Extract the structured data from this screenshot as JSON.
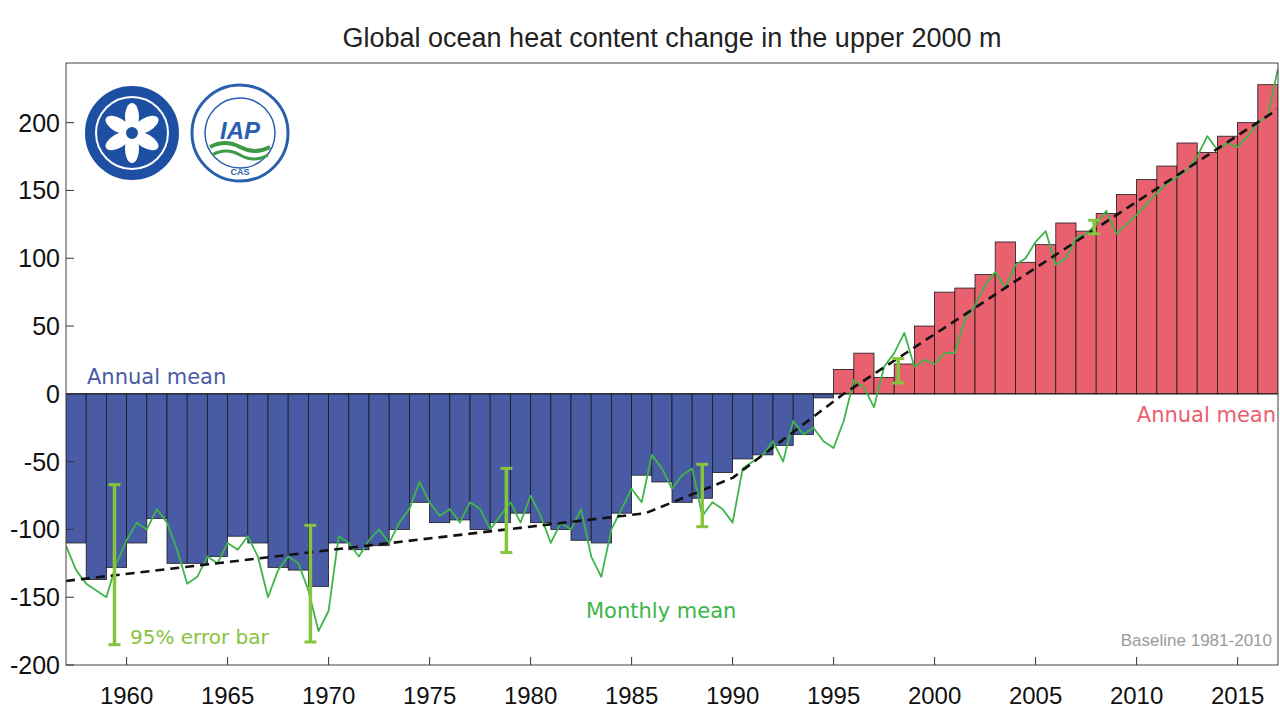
{
  "chart_data": {
    "type": "bar",
    "title": "Global ocean heat content change in the upper 2000 m",
    "x": [
      1957,
      1958,
      1959,
      1960,
      1961,
      1962,
      1963,
      1964,
      1965,
      1966,
      1967,
      1968,
      1969,
      1970,
      1971,
      1972,
      1973,
      1974,
      1975,
      1976,
      1977,
      1978,
      1979,
      1980,
      1981,
      1982,
      1983,
      1984,
      1985,
      1986,
      1987,
      1988,
      1989,
      1990,
      1991,
      1992,
      1993,
      1994,
      1995,
      1996,
      1997,
      1998,
      1999,
      2000,
      2001,
      2002,
      2003,
      2004,
      2005,
      2006,
      2007,
      2008,
      2009,
      2010,
      2011,
      2012,
      2013,
      2014,
      2015,
      2016
    ],
    "series": [
      {
        "name": "Annual mean",
        "type": "bar",
        "colors": [
          "#4a5ba6",
          "#4a5ba6",
          "#4a5ba6",
          "#4a5ba6",
          "#4a5ba6",
          "#4a5ba6",
          "#4a5ba6",
          "#4a5ba6",
          "#4a5ba6",
          "#4a5ba6",
          "#4a5ba6",
          "#4a5ba6",
          "#4a5ba6",
          "#4a5ba6",
          "#4a5ba6",
          "#4a5ba6",
          "#4a5ba6",
          "#4a5ba6",
          "#4a5ba6",
          "#4a5ba6",
          "#4a5ba6",
          "#4a5ba6",
          "#4a5ba6",
          "#4a5ba6",
          "#4a5ba6",
          "#4a5ba6",
          "#4a5ba6",
          "#4a5ba6",
          "#4a5ba6",
          "#4a5ba6",
          "#4a5ba6",
          "#4a5ba6",
          "#4a5ba6",
          "#4a5ba6",
          "#4a5ba6",
          "#4a5ba6",
          "#4a5ba6",
          "#4a5ba6",
          "#e9606e",
          "#e9606e",
          "#e9606e",
          "#e9606e",
          "#e9606e",
          "#e9606e",
          "#e9606e",
          "#e9606e",
          "#e9606e",
          "#e9606e",
          "#e9606e",
          "#e9606e",
          "#e9606e",
          "#e9606e",
          "#e9606e",
          "#e9606e",
          "#e9606e",
          "#e9606e",
          "#e9606e",
          "#e9606e",
          "#e9606e",
          "#e9606e"
        ],
        "values": [
          -110,
          -137,
          -128,
          -110,
          -92,
          -125,
          -125,
          -120,
          -105,
          -110,
          -128,
          -130,
          -142,
          -110,
          -115,
          -112,
          -100,
          -80,
          -95,
          -93,
          -100,
          -95,
          -88,
          -95,
          -100,
          -108,
          -110,
          -88,
          -60,
          -65,
          -80,
          -77,
          -58,
          -48,
          -45,
          -38,
          -30,
          -3,
          18,
          30,
          12,
          22,
          50,
          75,
          78,
          88,
          112,
          97,
          110,
          126,
          120,
          133,
          147,
          158,
          168,
          185,
          178,
          190,
          200,
          228
        ]
      },
      {
        "name": "Monthly mean",
        "type": "line",
        "color": "#3db54a",
        "x": [
          1957,
          1957.5,
          1958,
          1958.5,
          1959,
          1959.5,
          1960,
          1960.5,
          1961,
          1961.5,
          1962,
          1962.5,
          1963,
          1963.5,
          1964,
          1964.5,
          1965,
          1965.5,
          1966,
          1966.5,
          1967,
          1967.5,
          1968,
          1968.5,
          1969,
          1969.5,
          1970,
          1970.5,
          1971,
          1971.5,
          1972,
          1972.5,
          1973,
          1973.5,
          1974,
          1974.5,
          1975,
          1975.5,
          1976,
          1976.5,
          1977,
          1977.5,
          1978,
          1978.5,
          1979,
          1979.5,
          1980,
          1980.5,
          1981,
          1981.5,
          1982,
          1982.5,
          1983,
          1983.5,
          1984,
          1984.5,
          1985,
          1985.5,
          1986,
          1986.5,
          1987,
          1987.5,
          1988,
          1988.5,
          1989,
          1989.5,
          1990,
          1990.5,
          1991,
          1991.5,
          1992,
          1992.5,
          1993,
          1993.5,
          1994,
          1994.5,
          1995,
          1995.5,
          1996,
          1996.5,
          1997,
          1997.5,
          1998,
          1998.5,
          1999,
          1999.5,
          2000,
          2000.5,
          2001,
          2001.5,
          2002,
          2002.5,
          2003,
          2003.5,
          2004,
          2004.5,
          2005,
          2005.5,
          2006,
          2006.5,
          2007,
          2007.5,
          2008,
          2008.5,
          2009,
          2009.5,
          2010,
          2010.5,
          2011,
          2011.5,
          2012,
          2012.5,
          2013,
          2013.5,
          2014,
          2014.5,
          2015,
          2015.5,
          2016,
          2016.5,
          2017
        ],
        "values": [
          -112,
          -130,
          -140,
          -145,
          -150,
          -125,
          -108,
          -95,
          -100,
          -85,
          -95,
          -115,
          -140,
          -135,
          -120,
          -125,
          -110,
          -115,
          -105,
          -120,
          -150,
          -130,
          -120,
          -125,
          -145,
          -175,
          -160,
          -105,
          -110,
          -120,
          -108,
          -100,
          -110,
          -95,
          -85,
          -65,
          -80,
          -90,
          -85,
          -95,
          -80,
          -85,
          -100,
          -90,
          -80,
          -95,
          -75,
          -90,
          -110,
          -95,
          -100,
          -85,
          -120,
          -135,
          -100,
          -85,
          -70,
          -80,
          -45,
          -55,
          -70,
          -60,
          -55,
          -90,
          -80,
          -85,
          -95,
          -55,
          -50,
          -45,
          -35,
          -50,
          -20,
          -30,
          -25,
          -35,
          -40,
          -20,
          10,
          5,
          -10,
          20,
          30,
          45,
          20,
          25,
          22,
          30,
          30,
          55,
          65,
          80,
          90,
          78,
          95,
          100,
          112,
          120,
          95,
          100,
          115,
          118,
          125,
          135,
          118,
          125,
          132,
          140,
          148,
          155,
          160,
          165,
          175,
          190,
          180,
          185,
          182,
          190,
          200,
          205,
          240
        ]
      },
      {
        "type": "line",
        "line_style": "dashed",
        "color": "#111111",
        "x": [
          1957,
          1985.7,
          1990,
          1995.5,
          2017
        ],
        "values": [
          -138,
          -88,
          -62,
          0,
          210
        ]
      }
    ],
    "error_bars": {
      "name": "95% error bar",
      "color": "#86c440",
      "x": [
        1959.4,
        1969.1,
        1978.8,
        1988.5,
        1998.2,
        2007.9
      ],
      "values": [
        -126,
        -140,
        -86,
        -75,
        17,
        123
      ],
      "errors": [
        59,
        43,
        31,
        23,
        9,
        5
      ]
    },
    "annotations": [
      "Baseline 1981-2010"
    ],
    "xlim": [
      1957,
      2017
    ],
    "xticks": [
      1960,
      1965,
      1970,
      1975,
      1980,
      1985,
      1990,
      1995,
      2000,
      2005,
      2010,
      2015
    ],
    "ylim": [
      -200,
      244
    ],
    "yticks": [
      -200,
      -150,
      -100,
      -50,
      0,
      50,
      100,
      150,
      200
    ],
    "grid": false
  },
  "logos": {
    "texts": [
      "IAP",
      "CAS"
    ]
  }
}
